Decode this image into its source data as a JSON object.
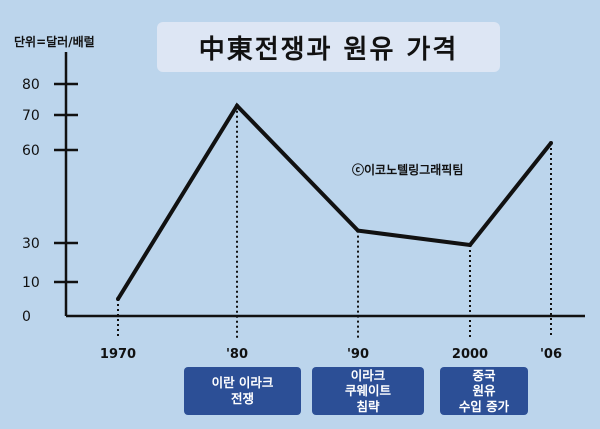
{
  "title": "中東전쟁과 원유 가격",
  "unit_label": "단위=달러/배럴",
  "credit": "ⓒ이코노텔링그래픽팀",
  "chart_data": {
    "type": "line",
    "title": "中東전쟁과 원유 가격",
    "xlabel": "",
    "ylabel": "단위=달러/배럴",
    "x": [
      "1970",
      "'80",
      "'90",
      "2000",
      "'06"
    ],
    "series": [
      {
        "values": [
          5,
          73,
          34,
          29,
          62
        ]
      }
    ],
    "yticks": [
      0,
      10,
      30,
      60,
      70,
      80
    ],
    "ylim": [
      0,
      80
    ],
    "grid": false,
    "line_color": "#111111"
  },
  "events": [
    {
      "label": "이란 이라크\n전쟁"
    },
    {
      "label": "이라크\n쿠웨이트\n침략"
    },
    {
      "label": "중국\n원유\n수입 증가"
    }
  ]
}
